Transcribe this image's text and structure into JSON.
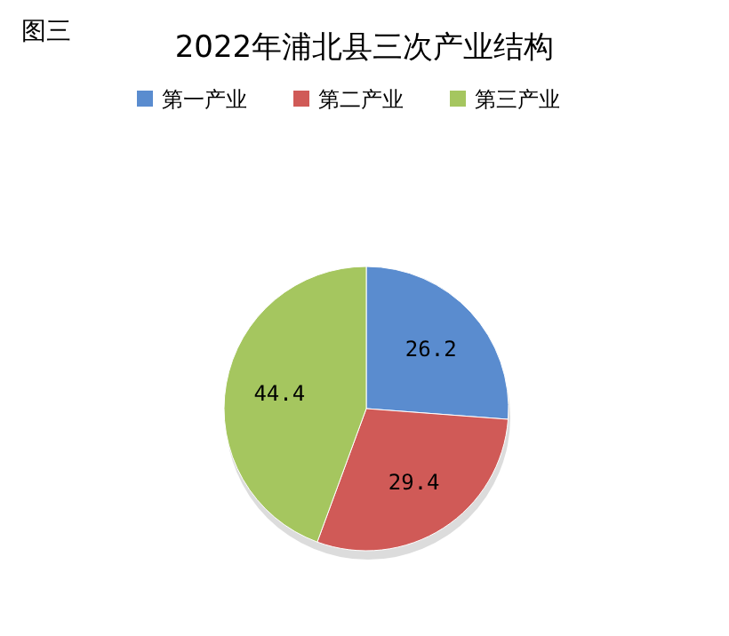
{
  "chart_data": {
    "type": "pie",
    "title": "2022年浦北县三次产业结构",
    "categories": [
      "第一产业",
      "第二产业",
      "第三产业"
    ],
    "values": [
      26.2,
      29.4,
      44.4
    ],
    "colors": [
      "#5a8ccf",
      "#d05a57",
      "#a5c65f"
    ],
    "legend": "top",
    "data_labels": true,
    "annotations": [
      "图三"
    ]
  }
}
